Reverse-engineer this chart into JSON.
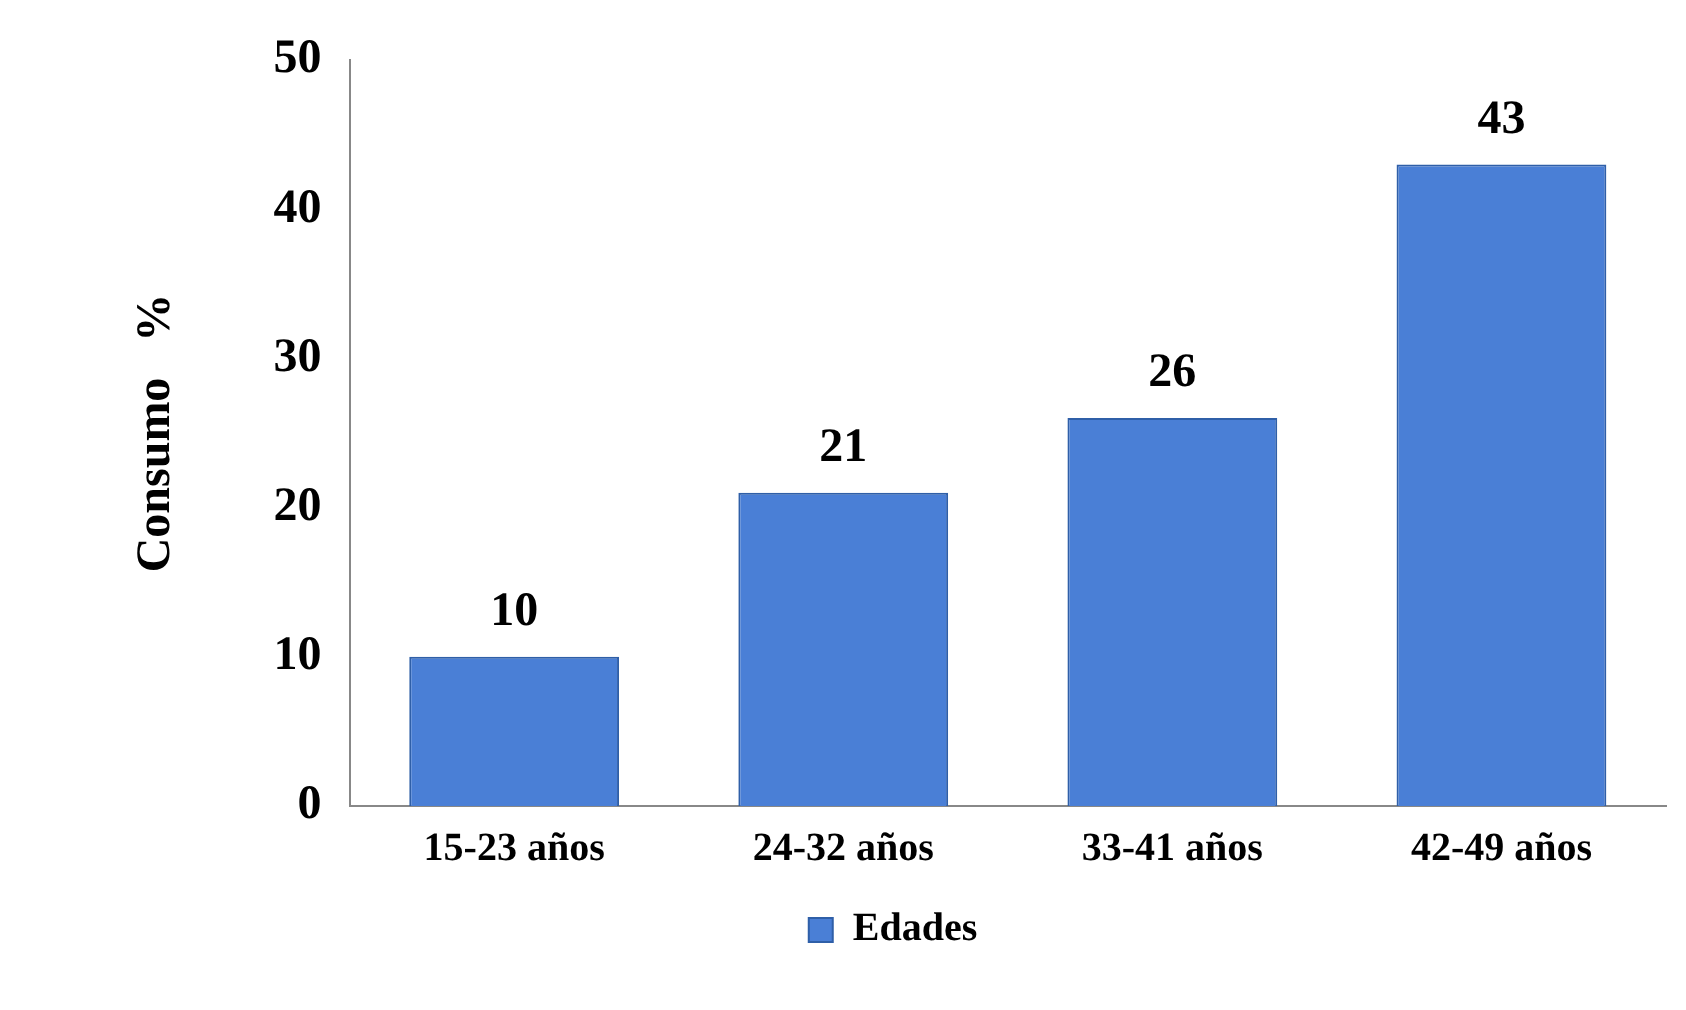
{
  "chart_data": {
    "type": "bar",
    "ylabel": "Consumo   %",
    "categories": [
      "15-23 años",
      "24-32 años",
      "33-41 años",
      "42-49 años"
    ],
    "series": [
      {
        "name": "Edades",
        "color": "#4a7fd6",
        "values": [
          10,
          21,
          26,
          43
        ]
      }
    ],
    "ylim": [
      0,
      50
    ],
    "yticks": [
      0,
      10,
      20,
      30,
      40,
      50
    ],
    "grid": false,
    "legend": "bottom",
    "data_labels": true
  }
}
